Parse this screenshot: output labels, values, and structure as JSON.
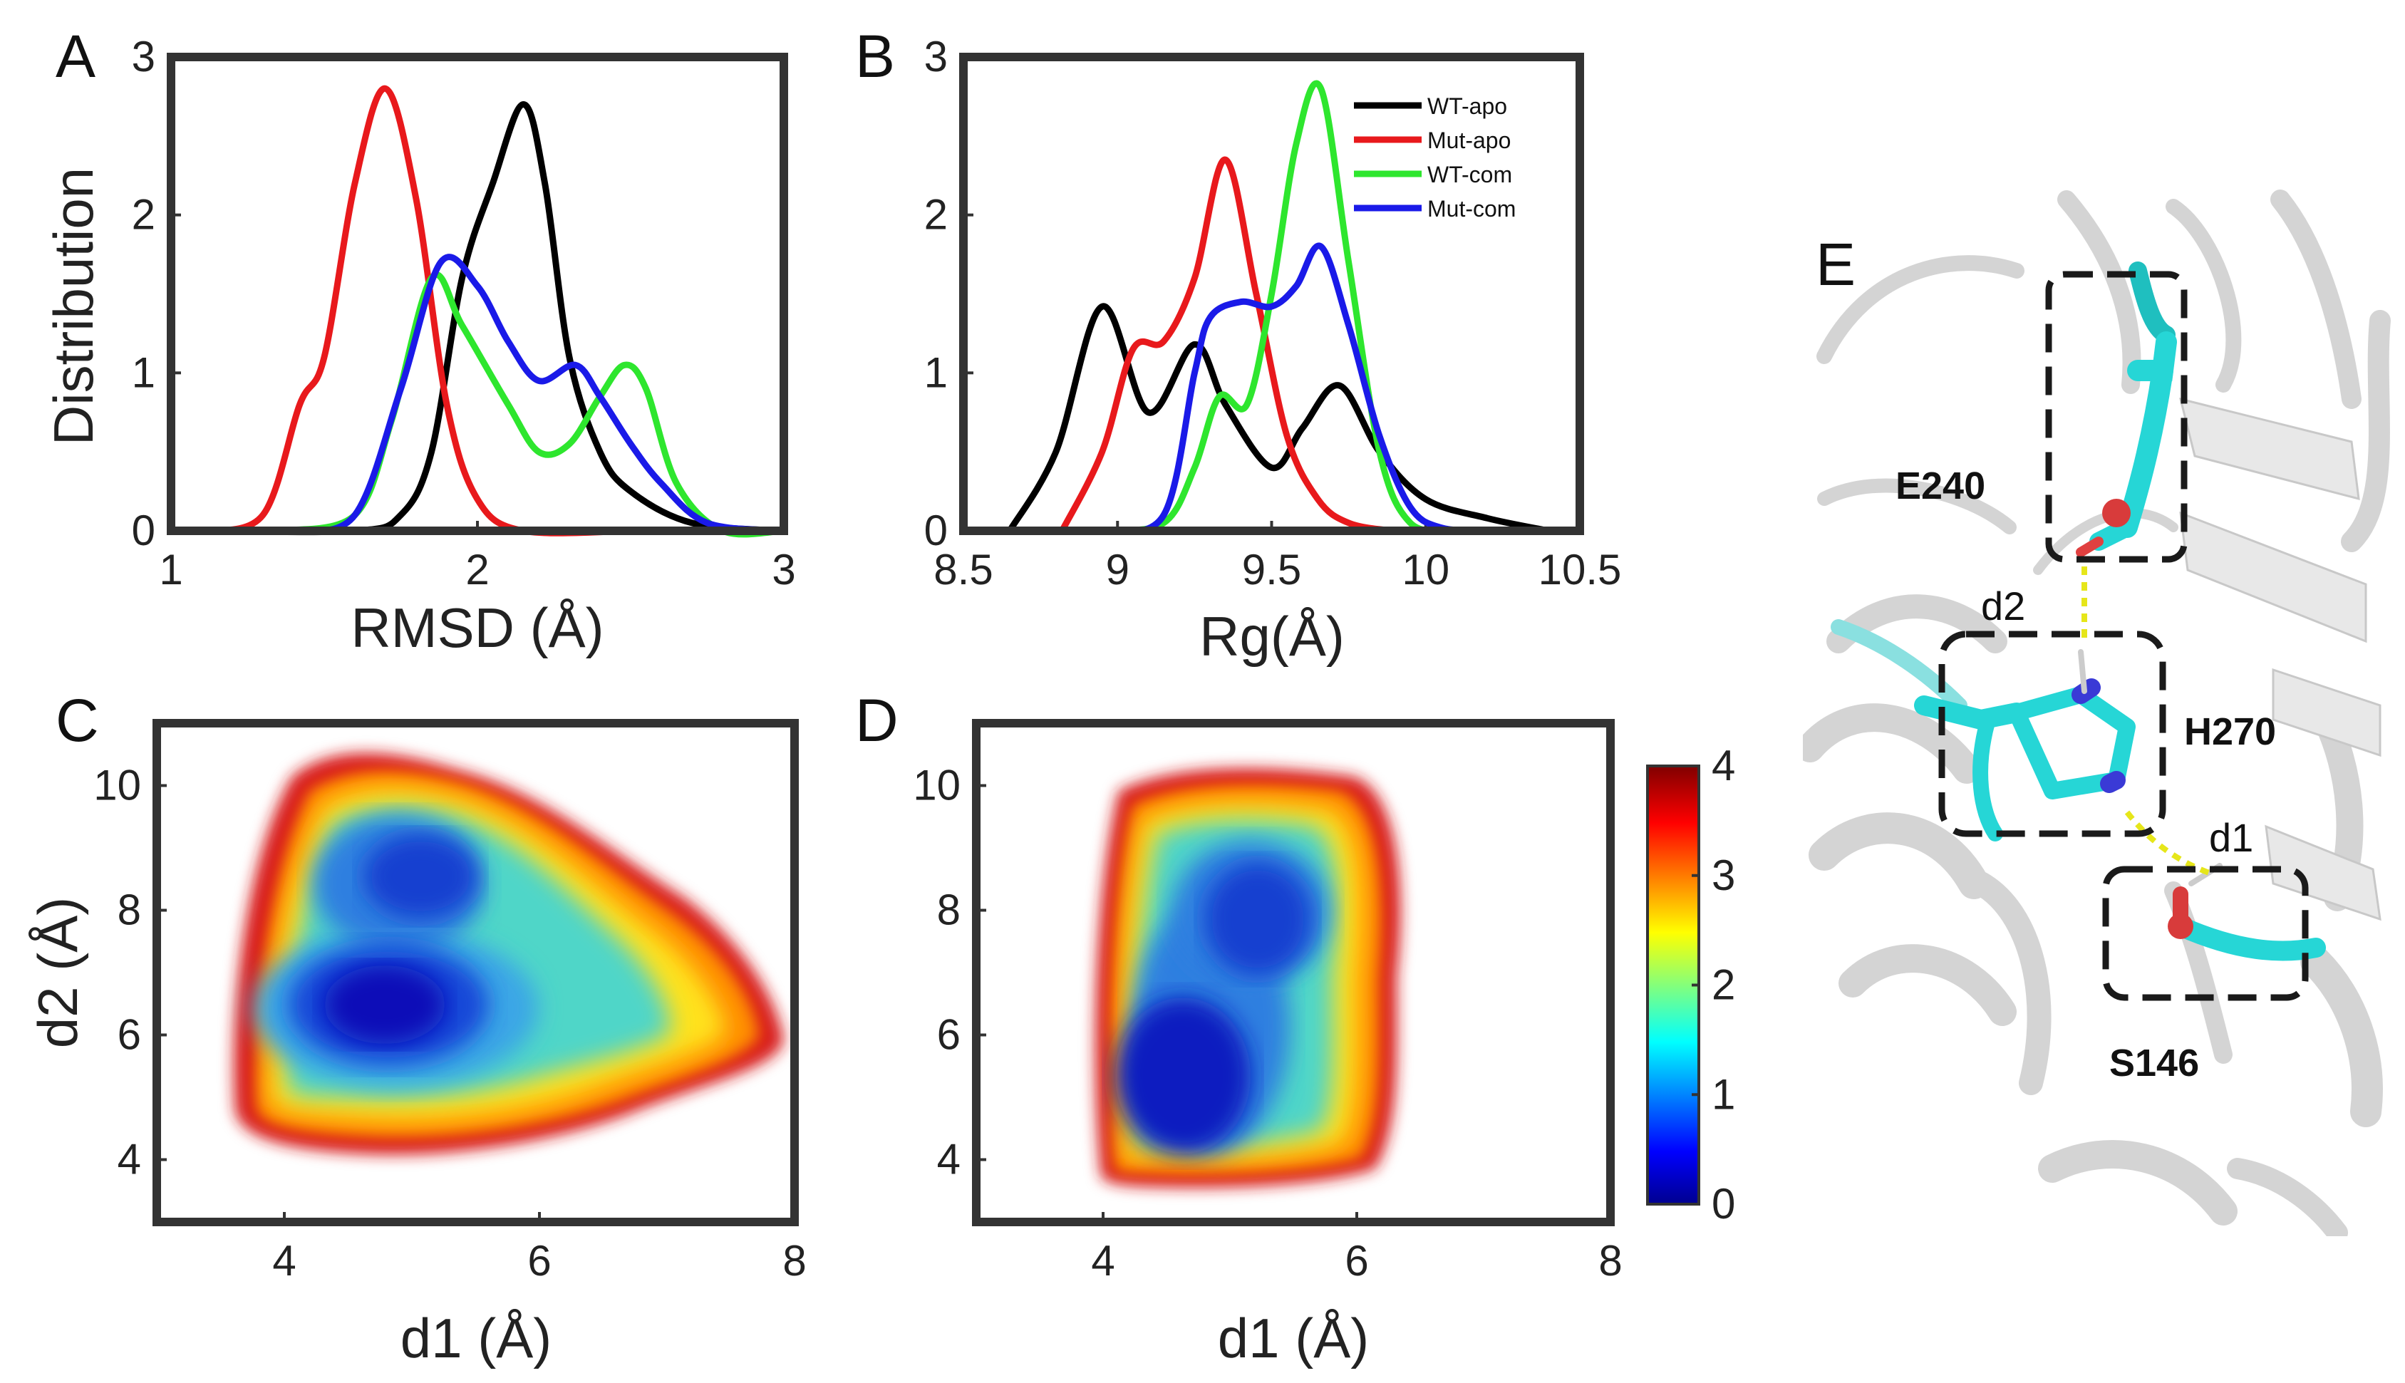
{
  "panel_labels": {
    "A": "A",
    "B": "B",
    "C": "C",
    "D": "D",
    "E": "E"
  },
  "colors": {
    "WT-apo": "#000000",
    "Mut-apo": "#e8191c",
    "WT-com": "#2ee62e",
    "Mut-com": "#1a1ae8"
  },
  "chart_data": [
    {
      "panel": "A",
      "type": "line",
      "xlabel": "RMSD (Å)",
      "ylabel": "Distribution",
      "xlim": [
        1,
        3
      ],
      "ylim": [
        0,
        3
      ],
      "xticks": [
        "1",
        "2",
        "3"
      ],
      "yticks": [
        "0",
        "1",
        "2",
        "3"
      ],
      "series": [
        {
          "name": "WT-apo",
          "color": "#000000",
          "x": [
            1.1,
            1.6,
            1.75,
            1.85,
            1.95,
            2.05,
            2.15,
            2.22,
            2.3,
            2.4,
            2.5,
            2.7,
            3.0
          ],
          "y": [
            0,
            0,
            0.1,
            0.5,
            1.6,
            2.2,
            2.7,
            2.2,
            1.1,
            0.5,
            0.25,
            0.05,
            0
          ]
        },
        {
          "name": "Mut-apo",
          "color": "#e8191c",
          "x": [
            1.1,
            1.3,
            1.42,
            1.5,
            1.6,
            1.7,
            1.8,
            1.9,
            2.0,
            2.15,
            2.5
          ],
          "y": [
            0,
            0.1,
            0.8,
            1.1,
            2.2,
            2.8,
            2.1,
            0.8,
            0.2,
            0,
            0
          ]
        },
        {
          "name": "WT-com",
          "color": "#2ee62e",
          "x": [
            1.35,
            1.6,
            1.72,
            1.85,
            1.95,
            2.1,
            2.2,
            2.3,
            2.4,
            2.48,
            2.55,
            2.65,
            2.8,
            3.0
          ],
          "y": [
            0,
            0.1,
            0.7,
            1.6,
            1.3,
            0.8,
            0.5,
            0.55,
            0.85,
            1.05,
            0.9,
            0.3,
            0,
            0
          ]
        },
        {
          "name": "Mut-com",
          "color": "#1a1ae8",
          "x": [
            1.4,
            1.6,
            1.75,
            1.88,
            2.0,
            2.1,
            2.2,
            2.32,
            2.4,
            2.5,
            2.6,
            2.75,
            3.0
          ],
          "y": [
            0,
            0.1,
            0.9,
            1.7,
            1.55,
            1.2,
            0.95,
            1.05,
            0.85,
            0.55,
            0.3,
            0.05,
            0
          ]
        }
      ]
    },
    {
      "panel": "B",
      "type": "line",
      "xlabel": "Rg(Å)",
      "xlim": [
        8.5,
        10.5
      ],
      "ylim": [
        0,
        3
      ],
      "xticks": [
        "8.5",
        "9",
        "9.5",
        "10",
        "10.5"
      ],
      "yticks": [
        "0",
        "1",
        "2",
        "3"
      ],
      "legend": {
        "position": "top-right",
        "entries": [
          "WT-apo",
          "Mut-apo",
          "WT-com",
          "Mut-com"
        ]
      },
      "series": [
        {
          "name": "WT-apo",
          "color": "#000000",
          "x": [
            8.65,
            8.8,
            8.95,
            9.1,
            9.25,
            9.35,
            9.5,
            9.6,
            9.72,
            9.85,
            10.0,
            10.2,
            10.4
          ],
          "y": [
            0,
            0.5,
            1.42,
            0.75,
            1.18,
            0.8,
            0.4,
            0.65,
            0.92,
            0.5,
            0.2,
            0.08,
            0
          ]
        },
        {
          "name": "Mut-apo",
          "color": "#e8191c",
          "x": [
            8.82,
            8.95,
            9.05,
            9.15,
            9.25,
            9.35,
            9.45,
            9.55,
            9.65,
            9.75,
            9.9,
            10.0
          ],
          "y": [
            0,
            0.5,
            1.15,
            1.2,
            1.6,
            2.35,
            1.5,
            0.6,
            0.2,
            0.05,
            0,
            0
          ]
        },
        {
          "name": "WT-com",
          "color": "#2ee62e",
          "x": [
            8.95,
            9.15,
            9.25,
            9.33,
            9.42,
            9.5,
            9.58,
            9.66,
            9.75,
            9.85,
            9.95,
            10.1
          ],
          "y": [
            0,
            0.05,
            0.4,
            0.85,
            0.8,
            1.5,
            2.45,
            2.8,
            1.7,
            0.5,
            0.05,
            0
          ]
        },
        {
          "name": "Mut-com",
          "color": "#1a1ae8",
          "x": [
            8.95,
            9.15,
            9.25,
            9.3,
            9.4,
            9.5,
            9.58,
            9.66,
            9.75,
            9.85,
            9.95,
            10.05,
            10.2
          ],
          "y": [
            0,
            0.1,
            1.0,
            1.35,
            1.45,
            1.42,
            1.55,
            1.8,
            1.3,
            0.6,
            0.15,
            0.02,
            0
          ]
        }
      ]
    },
    {
      "panel": "C",
      "type": "heatmap",
      "xlabel": "d1 (Å)",
      "ylabel": "d2 (Å)",
      "xlim": [
        3,
        8
      ],
      "ylim": [
        3,
        11
      ],
      "xticks": [
        "4",
        "6",
        "8"
      ],
      "yticks": [
        "4",
        "6",
        "8",
        "10"
      ],
      "basins": [
        {
          "d1": 4.95,
          "d2": 6.6
        },
        {
          "d1": 4.8,
          "d2": 8.4
        }
      ]
    },
    {
      "panel": "D",
      "type": "heatmap",
      "xlabel": "d1 (Å)",
      "xlim": [
        3,
        8
      ],
      "ylim": [
        3,
        11
      ],
      "xticks": [
        "4",
        "6",
        "8"
      ],
      "yticks": [
        "4",
        "6",
        "8",
        "10"
      ],
      "basins": [
        {
          "d1": 4.6,
          "d2": 5.4
        },
        {
          "d1": 5.1,
          "d2": 7.6
        }
      ]
    }
  ],
  "colorbar": {
    "min": 0,
    "max": 4,
    "ticks": [
      "0",
      "1",
      "2",
      "3",
      "4"
    ],
    "colormap": "jet"
  },
  "structure": {
    "residues": [
      "E240",
      "H270",
      "S146"
    ],
    "distances": [
      "d2",
      "d1"
    ]
  }
}
